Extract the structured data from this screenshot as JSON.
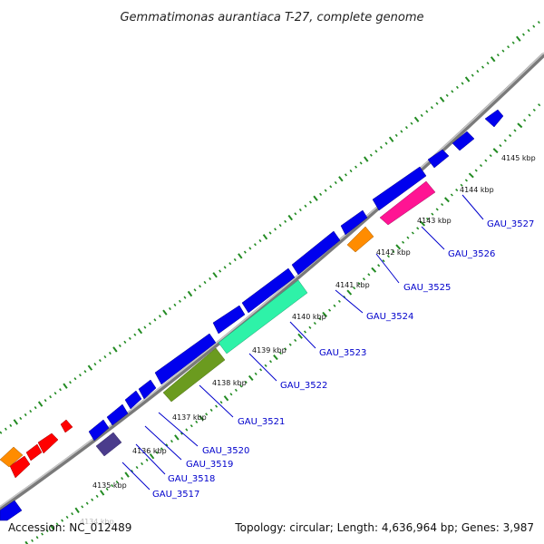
{
  "title": "Gemmatimonas aurantiaca T-27, complete genome",
  "footer": {
    "accession": "Accession: NC_012489",
    "summary": "Topology: circular; Length: 4,636,964 bp; Genes: 3,987"
  },
  "colors": {
    "forward": "#0000ee",
    "backbone": "#999999",
    "ticks": "#228b22",
    "label": "#0000cc"
  },
  "kbp_labels": [
    "4134 kbp",
    "4135 kbp",
    "4136 kbp",
    "4137 kbp",
    "4138 kbp",
    "4139 kbp",
    "4140 kbp",
    "4141 kbp",
    "4142 kbp",
    "4143 kbp",
    "4144 kbp",
    "4145 kbp"
  ],
  "labeled_genes": [
    {
      "name": "GAU_3517",
      "color": "#4b3c8c"
    },
    {
      "name": "GAU_3518",
      "color": "#0000ee"
    },
    {
      "name": "GAU_3519",
      "color": "#0000ee"
    },
    {
      "name": "GAU_3520",
      "color": "#0000ee"
    },
    {
      "name": "GAU_3521",
      "color": "#6b9b1f"
    },
    {
      "name": "GAU_3522",
      "color": "#2ef2a8"
    },
    {
      "name": "GAU_3523",
      "color": "#0000ee"
    },
    {
      "name": "GAU_3524",
      "color": "#0000ee"
    },
    {
      "name": "GAU_3525",
      "color": "#ff8c00"
    },
    {
      "name": "GAU_3526",
      "color": "#ff1493"
    },
    {
      "name": "GAU_3527",
      "color": "#0000ee"
    }
  ]
}
